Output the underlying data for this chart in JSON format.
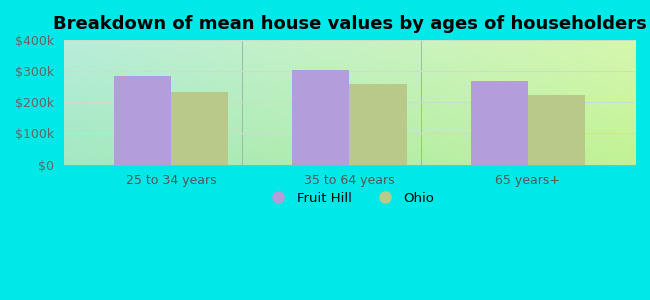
{
  "title": "Breakdown of mean house values by ages of householders",
  "categories": [
    "25 to 34 years",
    "35 to 64 years",
    "65 years+"
  ],
  "fruit_hill_values": [
    285000,
    305000,
    268000
  ],
  "ohio_values": [
    232000,
    260000,
    222000
  ],
  "fruit_hill_color": "#b39ddb",
  "ohio_color": "#b8c98a",
  "ylim": [
    0,
    400000
  ],
  "yticks": [
    0,
    100000,
    200000,
    300000,
    400000
  ],
  "ytick_labels": [
    "$0",
    "$100k",
    "$200k",
    "$300k",
    "$400k"
  ],
  "outer_bg": "#00e8e8",
  "bar_width": 0.32,
  "legend_labels": [
    "Fruit Hill",
    "Ohio"
  ],
  "title_fontsize": 13,
  "tick_fontsize": 9,
  "grid_color": "#ccddcc",
  "separator_color": "#99bbaa"
}
